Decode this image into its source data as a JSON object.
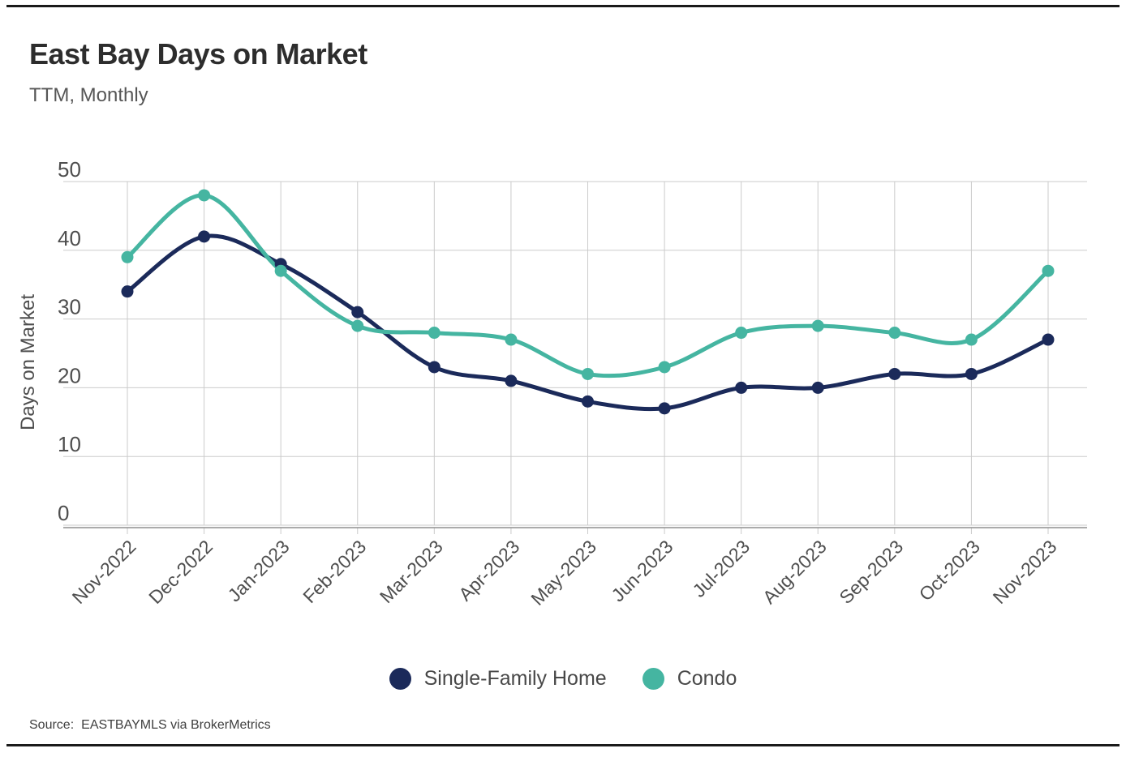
{
  "header": {
    "title": "East Bay Days on Market",
    "subtitle": "TTM, Monthly"
  },
  "source": {
    "label": "Source:",
    "text": "EASTBAYMLS via BrokerMetrics"
  },
  "colors": {
    "single_family": "#1b2a5a",
    "condo": "#45b5a1",
    "gridline": "#cbcbcb",
    "axis": "#8f8f8f",
    "tick_text": "#4e4e4e"
  },
  "chart_data": {
    "type": "line",
    "title": "East Bay Days on Market",
    "subtitle": "TTM, Monthly",
    "xlabel": "",
    "ylabel": "Days on Market",
    "ylim": [
      0,
      50
    ],
    "yticks": [
      0,
      10,
      20,
      30,
      40,
      50
    ],
    "grid": true,
    "line_style": "smooth",
    "legend_position": "bottom",
    "categories": [
      "Nov-2022",
      "Dec-2022",
      "Jan-2023",
      "Feb-2023",
      "Mar-2023",
      "Apr-2023",
      "May-2023",
      "Jun-2023",
      "Jul-2023",
      "Aug-2023",
      "Sep-2023",
      "Oct-2023",
      "Nov-2023"
    ],
    "series": [
      {
        "name": "Single-Family Home",
        "color": "#1b2a5a",
        "values": [
          34,
          42,
          38,
          31,
          23,
          21,
          18,
          17,
          20,
          20,
          22,
          22,
          27
        ]
      },
      {
        "name": "Condo",
        "color": "#45b5a1",
        "values": [
          39,
          48,
          37,
          29,
          28,
          27,
          22,
          23,
          28,
          29,
          28,
          27,
          37
        ]
      }
    ]
  }
}
